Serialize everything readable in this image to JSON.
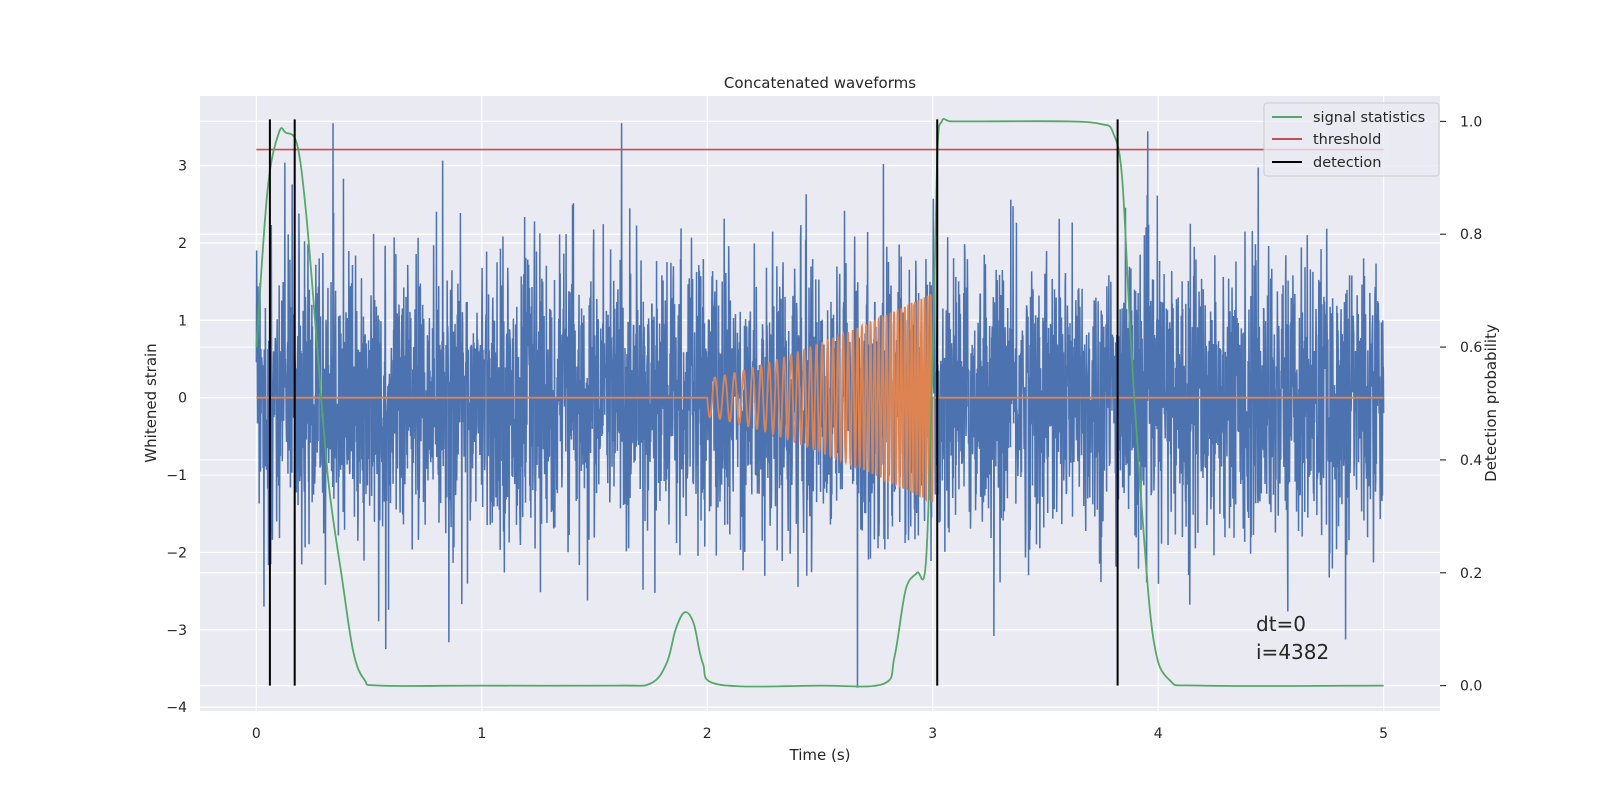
{
  "chart_data": {
    "type": "line",
    "title": "Concatenated waveforms",
    "xlabel": "Time (s)",
    "ylabel": "Whitened strain",
    "y2label": "Detection probability",
    "xlim": [
      -0.25,
      5.25
    ],
    "ylim": [
      -4.05,
      3.9
    ],
    "y2lim": [
      -0.045,
      1.045
    ],
    "grid": true,
    "legend_position": "top-right",
    "x_ticks": [
      0,
      1,
      2,
      3,
      4,
      5
    ],
    "y_ticks": [
      -4,
      -3,
      -2,
      -1,
      0,
      1,
      2,
      3
    ],
    "y2_ticks": [
      0.0,
      0.2,
      0.4,
      0.6,
      0.8,
      1.0
    ],
    "x_tick_labels": [
      "0",
      "1",
      "2",
      "3",
      "4",
      "5"
    ],
    "y_tick_labels": [
      "−4",
      "−3",
      "−2",
      "−1",
      "0",
      "1",
      "2",
      "3"
    ],
    "y2_tick_labels": [
      "0.0",
      "0.2",
      "0.4",
      "0.6",
      "0.8",
      "1.0"
    ],
    "noise": {
      "x_range": [
        0,
        5
      ],
      "amplitude_range": [
        -3.75,
        3.55
      ],
      "typical_std": 0.9,
      "color": "#4c72b0"
    },
    "injected_chirp": {
      "start": 2.0,
      "end": 3.0,
      "start_amplitude": 0.25,
      "end_amplitude": 1.35,
      "start_frequency_hz": 22,
      "end_frequency_hz": 75,
      "color": "#dd8452"
    },
    "series": [
      {
        "name": "signal statistics",
        "axis": "right",
        "color": "#55a868",
        "x": [
          0.0,
          0.05,
          0.1,
          0.13,
          0.18,
          0.22,
          0.27,
          0.32,
          0.38,
          0.43,
          0.48,
          0.55,
          1.0,
          1.6,
          1.75,
          1.82,
          1.86,
          1.9,
          1.94,
          1.98,
          2.05,
          2.5,
          2.78,
          2.83,
          2.88,
          2.93,
          2.97,
          3.0,
          3.02,
          3.04,
          3.08,
          3.2,
          3.6,
          3.75,
          3.8,
          3.84,
          3.88,
          3.93,
          3.98,
          4.05,
          4.2,
          5.0
        ],
        "y": [
          0.6,
          0.88,
          0.98,
          0.98,
          0.96,
          0.84,
          0.6,
          0.36,
          0.19,
          0.06,
          0.01,
          0.0,
          0.0,
          0.0,
          0.004,
          0.04,
          0.1,
          0.13,
          0.11,
          0.04,
          0.002,
          0.0,
          0.003,
          0.05,
          0.17,
          0.2,
          0.22,
          0.58,
          0.94,
          1.0,
          1.0,
          1.0,
          1.0,
          0.995,
          0.98,
          0.9,
          0.6,
          0.3,
          0.08,
          0.01,
          0.0,
          0.0
        ]
      },
      {
        "name": "threshold",
        "axis": "right",
        "color": "#c44e52",
        "x": [
          0,
          5
        ],
        "y": [
          0.95,
          0.95
        ]
      },
      {
        "name": "detection",
        "color": "#000000",
        "vlines": [
          0.06,
          0.17,
          3.02,
          3.82
        ],
        "vline_range": [
          0.0,
          1.0
        ]
      }
    ],
    "annotation": [
      "dt=0",
      "i=4382"
    ]
  }
}
